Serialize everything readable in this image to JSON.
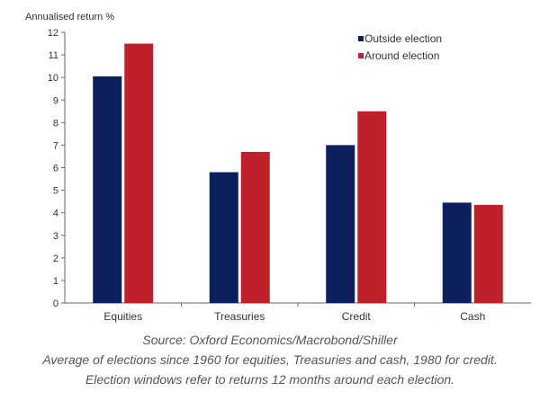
{
  "chart_data": {
    "type": "bar",
    "ylabel": "Annualised return %",
    "xlabel": "",
    "ylim": [
      0,
      12
    ],
    "yticks": [
      0,
      1,
      2,
      3,
      4,
      5,
      6,
      7,
      8,
      9,
      10,
      11,
      12
    ],
    "categories": [
      "Equities",
      "Treasuries",
      "Credit",
      "Cash"
    ],
    "legend_position": "top-right",
    "series": [
      {
        "name": "Outside election",
        "color": "#0d1f5c",
        "values": [
          10.05,
          5.8,
          7.0,
          4.45
        ]
      },
      {
        "name": "Around election",
        "color": "#c0202a",
        "values": [
          11.5,
          6.7,
          8.5,
          4.35
        ]
      }
    ]
  },
  "captions": {
    "source": "Source: Oxford Economics/Macrobond/Shiller",
    "note1": "Average of elections since 1960 for equities, Treasuries and cash, 1980 for credit.",
    "note2": "Election windows refer to returns 12 months around each election."
  }
}
